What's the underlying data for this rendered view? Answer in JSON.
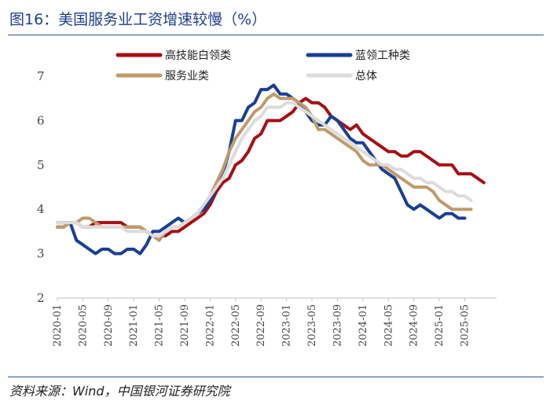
{
  "figure": {
    "title": "图16：美国服务业工资增速较慢（%）",
    "source": "资料来源：Wind，中国银河证券研究院"
  },
  "chart_data": {
    "type": "line",
    "title": "美国服务业工资增速较慢（%）",
    "xlabel": "",
    "ylabel": "%",
    "ylim": [
      2,
      7
    ],
    "yticks": [
      2,
      3,
      4,
      5,
      6,
      7
    ],
    "x_start": "2020-01",
    "x_end": "2025-10",
    "x_tick_labels": [
      "2020-01",
      "2020-05",
      "2020-09",
      "2021-01",
      "2021-05",
      "2021-09",
      "2022-01",
      "2022-05",
      "2022-09",
      "2023-01",
      "2023-05",
      "2023-09",
      "2024-01",
      "2024-05",
      "2024-09",
      "2025-01",
      "2025-05"
    ],
    "legend_position": "top",
    "series": [
      {
        "name": "高技能白领类",
        "color": "#a50f15",
        "values": [
          3.6,
          3.6,
          3.7,
          3.7,
          3.6,
          3.6,
          3.7,
          3.7,
          3.7,
          3.7,
          3.7,
          3.6,
          3.6,
          3.6,
          3.5,
          3.4,
          3.4,
          3.4,
          3.5,
          3.5,
          3.6,
          3.7,
          3.8,
          3.9,
          4.1,
          4.4,
          4.6,
          4.7,
          5.0,
          5.1,
          5.3,
          5.6,
          5.7,
          6.0,
          6.0,
          6.0,
          6.1,
          6.2,
          6.4,
          6.5,
          6.4,
          6.4,
          6.3,
          6.1,
          6.0,
          5.9,
          5.8,
          5.9,
          5.7,
          5.6,
          5.5,
          5.4,
          5.3,
          5.3,
          5.2,
          5.2,
          5.3,
          5.3,
          5.2,
          5.1,
          5.0,
          5.0,
          5.0,
          4.8,
          4.8,
          4.8,
          4.7,
          4.6
        ]
      },
      {
        "name": "蓝领工种类",
        "color": "#1a3f93",
        "values": [
          3.7,
          3.7,
          3.7,
          3.3,
          3.2,
          3.1,
          3.0,
          3.1,
          3.1,
          3.0,
          3.0,
          3.1,
          3.1,
          3.0,
          3.2,
          3.5,
          3.5,
          3.6,
          3.7,
          3.8,
          3.7,
          3.8,
          3.9,
          4.0,
          4.2,
          4.5,
          4.8,
          5.3,
          6.0,
          6.0,
          6.3,
          6.4,
          6.7,
          6.7,
          6.8,
          6.6,
          6.6,
          6.5,
          6.4,
          6.2,
          6.0,
          5.9,
          5.9,
          6.1,
          6.0,
          5.8,
          5.6,
          5.5,
          5.5,
          5.3,
          5.1,
          4.9,
          4.8,
          4.7,
          4.4,
          4.1,
          4.0,
          4.1,
          4.0,
          3.9,
          3.8,
          3.9,
          3.9,
          3.8,
          3.8
        ]
      },
      {
        "name": "服务业类",
        "color": "#bf9b6b",
        "values": [
          3.6,
          3.6,
          3.7,
          3.7,
          3.8,
          3.8,
          3.7,
          3.6,
          3.6,
          3.6,
          3.6,
          3.6,
          3.6,
          3.6,
          3.5,
          3.4,
          3.3,
          3.5,
          3.6,
          3.6,
          3.7,
          3.8,
          3.9,
          4.1,
          4.3,
          4.6,
          4.9,
          5.3,
          5.6,
          5.8,
          6.0,
          6.2,
          6.3,
          6.5,
          6.6,
          6.5,
          6.5,
          6.5,
          6.4,
          6.3,
          6.1,
          5.8,
          5.8,
          5.7,
          5.6,
          5.5,
          5.4,
          5.3,
          5.1,
          5.0,
          5.0,
          5.0,
          4.9,
          4.8,
          4.7,
          4.6,
          4.5,
          4.5,
          4.5,
          4.4,
          4.2,
          4.1,
          4.0,
          4.0,
          4.0,
          4.0
        ]
      },
      {
        "name": "总体",
        "color": "#dcdcdc",
        "values": [
          3.7,
          3.7,
          3.7,
          3.7,
          3.6,
          3.6,
          3.6,
          3.6,
          3.6,
          3.6,
          3.6,
          3.5,
          3.5,
          3.5,
          3.5,
          3.4,
          3.4,
          3.5,
          3.6,
          3.6,
          3.7,
          3.8,
          3.9,
          4.1,
          4.3,
          4.5,
          4.7,
          5.0,
          5.3,
          5.6,
          5.8,
          6.0,
          6.1,
          6.3,
          6.3,
          6.3,
          6.4,
          6.4,
          6.3,
          6.2,
          6.1,
          6.0,
          5.9,
          5.8,
          5.7,
          5.6,
          5.5,
          5.4,
          5.3,
          5.2,
          5.1,
          5.0,
          5.0,
          4.9,
          4.9,
          4.8,
          4.7,
          4.7,
          4.6,
          4.6,
          4.5,
          4.4,
          4.4,
          4.3,
          4.3,
          4.2
        ]
      }
    ]
  }
}
